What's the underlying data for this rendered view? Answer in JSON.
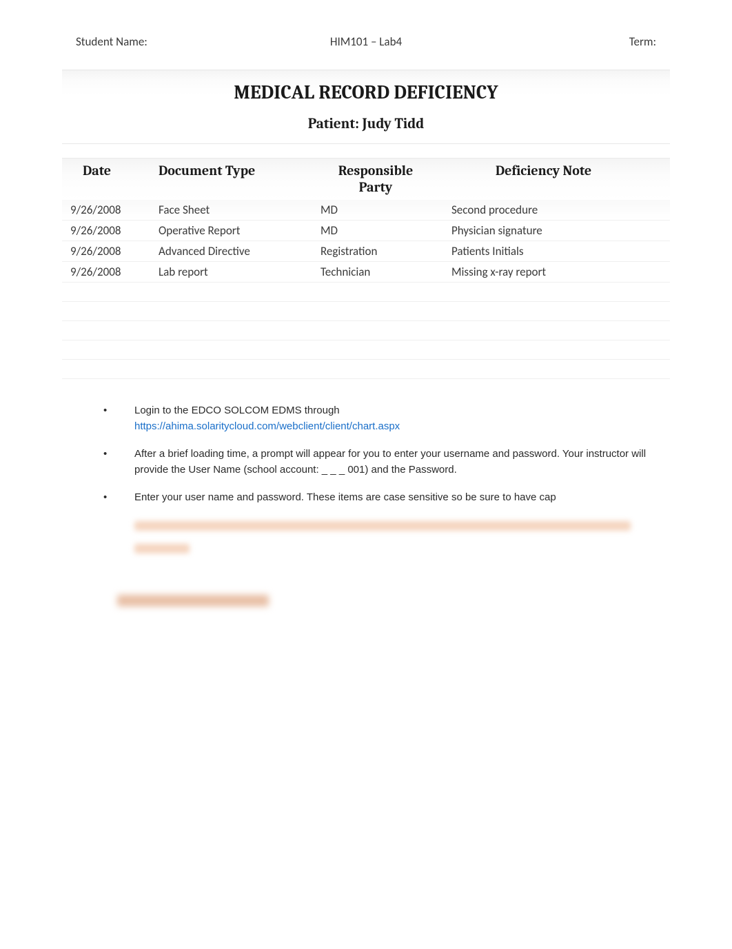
{
  "header": {
    "left": "Student Name:",
    "center": "HIM101 – Lab4",
    "right": "Term:"
  },
  "title": {
    "main": "MEDICAL RECORD DEFICIENCY",
    "sub": "Patient: Judy Tidd"
  },
  "table": {
    "columns": {
      "date": "Date",
      "doc": "Document Type",
      "resp_line1": "Responsible",
      "resp_line2": "Party",
      "def": "Deficiency Note"
    },
    "rows": [
      {
        "date": "9/26/2008",
        "doc": "Face Sheet",
        "resp": "MD",
        "def": "Second procedure"
      },
      {
        "date": "9/26/2008",
        "doc": "Operative Report",
        "resp": "MD",
        "def": "Physician signature"
      },
      {
        "date": "9/26/2008",
        "doc": "Advanced Directive",
        "resp": "Registration",
        "def": "Patients Initials"
      },
      {
        "date": "9/26/2008",
        "doc": "Lab report",
        "resp": "Technician",
        "def": "Missing x-ray report"
      }
    ],
    "empty_row_count": 5,
    "styling": {
      "header_bg_gradient_top": "#f4f4f4",
      "header_bg_gradient_bottom": "#ffffff",
      "row_border_color": "#efefef",
      "header_font": "Cambria",
      "header_fontsize": 20,
      "body_fontsize": 17,
      "text_color": "#3a3a3a"
    }
  },
  "instructions": [
    {
      "text_before": "Login to the EDCO SOLCOM EDMS through ",
      "link": "https://ahima.solaritycloud.com/webclient/client/chart.aspx",
      "text_after": ""
    },
    {
      "text_before": "After a brief loading time, a prompt will appear for you to enter your username and password. Your instructor will provide the User Name (school account: _ _ _ 001) and the Password.",
      "link": "",
      "text_after": ""
    },
    {
      "text_before": "Enter your user name and password. These items are case sensitive so be sure to have cap",
      "link": "",
      "text_after": ""
    }
  ],
  "colors": {
    "page_bg": "#ffffff",
    "text": "#3a3a3a",
    "title_text": "#1a1a1a",
    "link": "#1a6fc9",
    "blur_highlight": "#f5d5c0",
    "border_light": "#e8e8e8"
  },
  "typography": {
    "body_font": "Calibri",
    "title_font": "Cambria",
    "instruction_font": "Arial",
    "title_main_size": 28,
    "title_sub_size": 21,
    "body_size": 17,
    "instruction_size": 15
  }
}
